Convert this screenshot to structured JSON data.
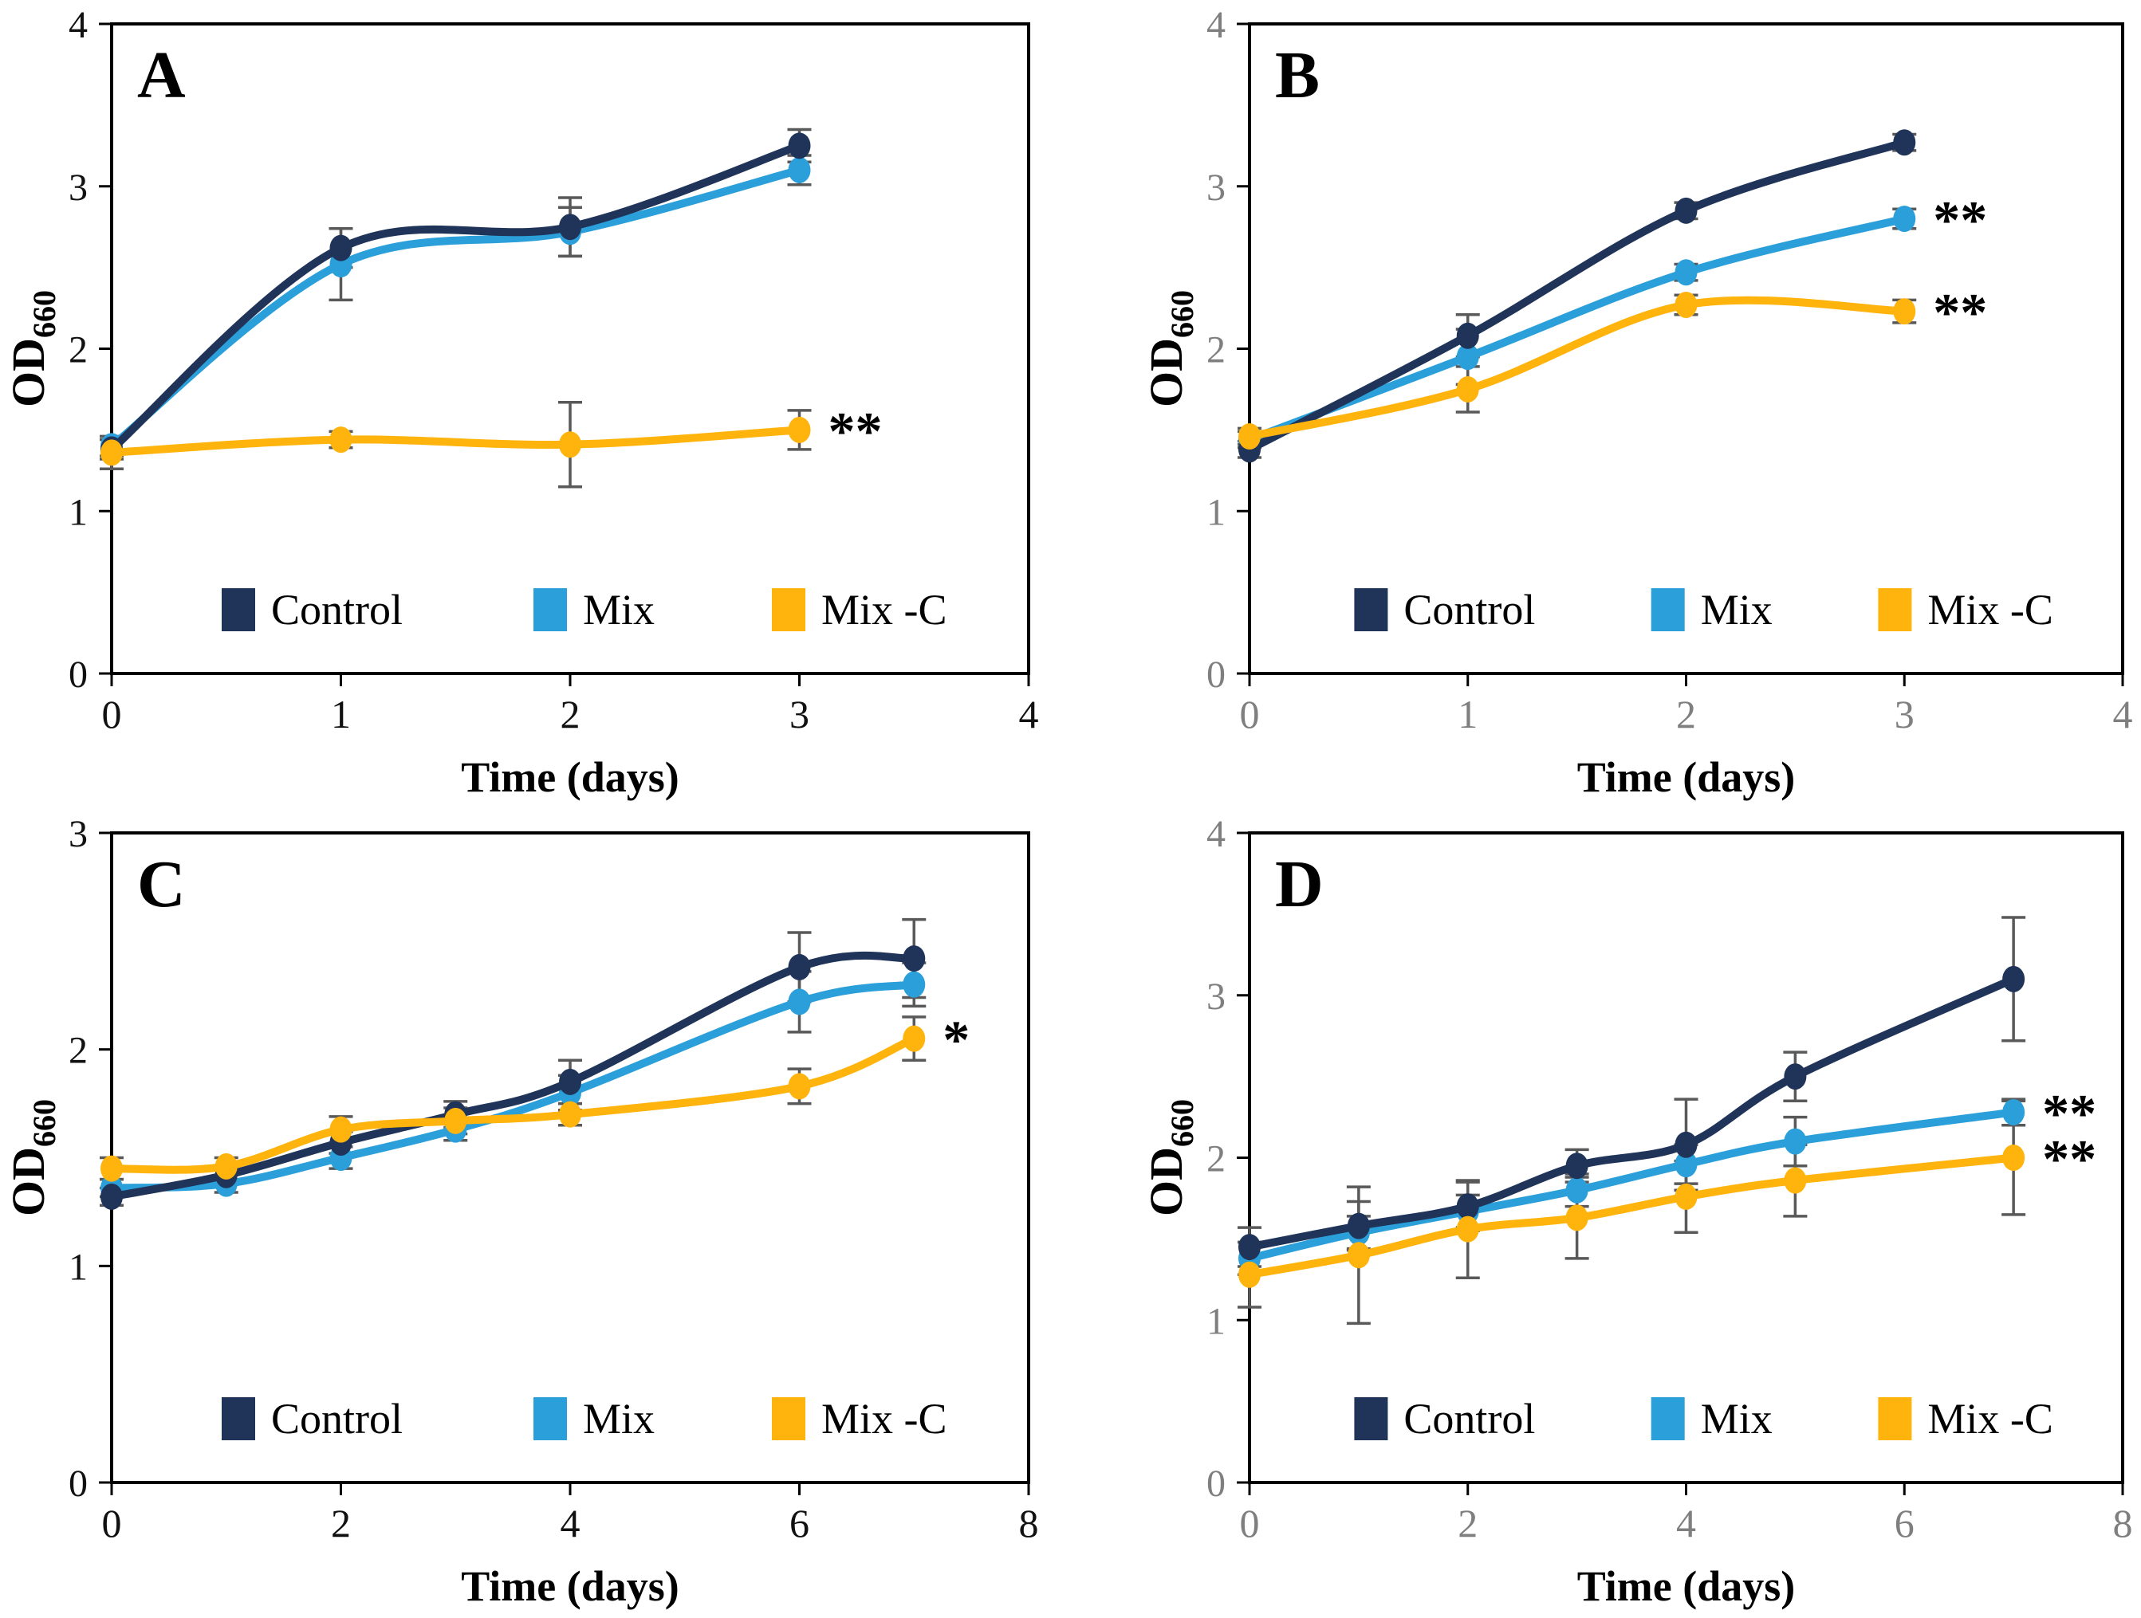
{
  "chart_data": {
    "type": "line",
    "layout": "2x2-panel-figure",
    "ylabel_main": "OD",
    "ylabel_sub": "660",
    "xlabel": "Time (days)",
    "background": "#ffffff",
    "axis_color": "#000000",
    "error_bar_color": "#595959",
    "tick_black": "#111111",
    "tick_gray": "#7f7f7f",
    "legend": [
      {
        "key": "control",
        "label": "Control",
        "color": "#1F3458"
      },
      {
        "key": "mix",
        "label": "Mix",
        "color": "#2B9FD9"
      },
      {
        "key": "mixc",
        "label": "Mix -C",
        "color": "#FFB30D"
      }
    ],
    "panels": [
      {
        "letter": "A",
        "tick_color": "black",
        "ylim": [
          0,
          4
        ],
        "yticks": [
          0,
          1,
          2,
          3,
          4
        ],
        "xlim": [
          0,
          4
        ],
        "xticks": [
          0,
          1,
          2,
          3,
          4
        ],
        "x": [
          0,
          1,
          2,
          3
        ],
        "series": [
          {
            "key": "control",
            "y": [
              1.38,
              2.62,
              2.75,
              3.25
            ],
            "err": [
              0.06,
              0.12,
              0.18,
              0.1
            ]
          },
          {
            "key": "mix",
            "y": [
              1.4,
              2.52,
              2.72,
              3.1
            ],
            "err": [
              0.06,
              0.22,
              0.15,
              0.09
            ]
          },
          {
            "key": "mixc",
            "y": [
              1.36,
              1.44,
              1.41,
              1.5
            ],
            "err": [
              0.1,
              0.05,
              0.26,
              0.12
            ]
          }
        ],
        "annotations": [
          {
            "series": "mixc",
            "index": 3,
            "text": "**"
          }
        ]
      },
      {
        "letter": "B",
        "tick_color": "gray",
        "ylim": [
          0,
          4
        ],
        "yticks": [
          0,
          1,
          2,
          3,
          4
        ],
        "xlim": [
          0,
          4
        ],
        "xticks": [
          0,
          1,
          2,
          3,
          4
        ],
        "x": [
          0,
          1,
          2,
          3
        ],
        "series": [
          {
            "key": "control",
            "y": [
              1.38,
              2.08,
              2.85,
              3.27
            ],
            "err": [
              0.05,
              0.13,
              0.05,
              0.05
            ]
          },
          {
            "key": "mix",
            "y": [
              1.44,
              1.95,
              2.47,
              2.8
            ],
            "err": [
              0.05,
              0.17,
              0.05,
              0.06
            ]
          },
          {
            "key": "mixc",
            "y": [
              1.46,
              1.75,
              2.27,
              2.23
            ],
            "err": [
              0.05,
              0.14,
              0.06,
              0.07
            ]
          }
        ],
        "annotations": [
          {
            "series": "mix",
            "index": 3,
            "text": "**"
          },
          {
            "series": "mixc",
            "index": 3,
            "text": "**"
          }
        ]
      },
      {
        "letter": "C",
        "tick_color": "black",
        "ylim": [
          0,
          3
        ],
        "yticks": [
          0,
          1,
          2,
          3
        ],
        "xlim": [
          0,
          8
        ],
        "xticks": [
          0,
          2,
          4,
          6,
          8
        ],
        "x": [
          0,
          1,
          2,
          3,
          4,
          6,
          7
        ],
        "series": [
          {
            "key": "control",
            "y": [
              1.32,
              1.42,
              1.57,
              1.7,
              1.85,
              2.38,
              2.42
            ],
            "err": [
              0.04,
              0.04,
              0.05,
              0.06,
              0.1,
              0.16,
              0.18
            ]
          },
          {
            "key": "mix",
            "y": [
              1.36,
              1.38,
              1.5,
              1.63,
              1.8,
              2.22,
              2.3
            ],
            "err": [
              0.04,
              0.04,
              0.05,
              0.05,
              0.08,
              0.14,
              0.1
            ]
          },
          {
            "key": "mixc",
            "y": [
              1.45,
              1.46,
              1.63,
              1.67,
              1.7,
              1.83,
              2.05
            ],
            "err": [
              0.05,
              0.04,
              0.06,
              0.06,
              0.05,
              0.08,
              0.1
            ]
          }
        ],
        "annotations": [
          {
            "series": "mixc",
            "index": 6,
            "text": "*"
          }
        ]
      },
      {
        "letter": "D",
        "tick_color": "gray",
        "ylim": [
          0,
          4
        ],
        "yticks": [
          0,
          1,
          2,
          3,
          4
        ],
        "xlim": [
          0,
          8
        ],
        "xticks": [
          0,
          2,
          4,
          6,
          8
        ],
        "x": [
          0,
          1,
          2,
          3,
          4,
          5,
          7
        ],
        "series": [
          {
            "key": "control",
            "y": [
              1.45,
              1.58,
              1.7,
              1.95,
              2.08,
              2.5,
              3.1
            ],
            "err": [
              0.12,
              0.15,
              0.15,
              0.1,
              0.28,
              0.15,
              0.38
            ]
          },
          {
            "key": "mix",
            "y": [
              1.38,
              1.54,
              1.67,
              1.8,
              1.96,
              2.1,
              2.28
            ],
            "err": [
              0.1,
              0.1,
              0.1,
              0.1,
              0.12,
              0.15,
              0.08
            ]
          },
          {
            "key": "mixc",
            "y": [
              1.28,
              1.4,
              1.56,
              1.63,
              1.76,
              1.86,
              2.0
            ],
            "err": [
              0.2,
              0.42,
              0.3,
              0.25,
              0.22,
              0.22,
              0.35
            ]
          }
        ],
        "annotations": [
          {
            "series": "mix",
            "index": 6,
            "text": "**"
          },
          {
            "series": "mixc",
            "index": 6,
            "text": "**"
          }
        ]
      }
    ]
  }
}
